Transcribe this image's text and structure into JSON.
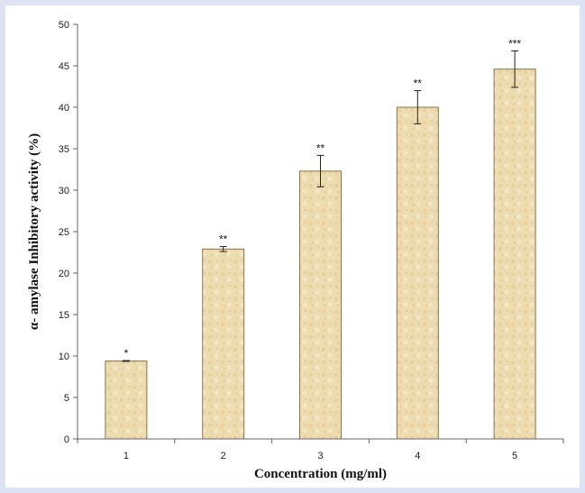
{
  "colors": {
    "background": "#dde3f4",
    "bar_fill": "#ecdcb0",
    "bar_edge": "#8a7450",
    "axis": "#666666"
  },
  "chart_data": {
    "type": "bar",
    "title": "",
    "xlabel": "Concentration (mg/ml)",
    "ylabel": "α- amylase Inhibitory activity (%)",
    "categories": [
      "1",
      "2",
      "3",
      "4",
      "5"
    ],
    "values": [
      9.4,
      22.9,
      32.3,
      40.0,
      44.6
    ],
    "error": [
      0.05,
      0.3,
      1.9,
      2.0,
      2.2
    ],
    "significance": [
      "*",
      "**",
      "**",
      "**",
      "***"
    ],
    "ylim": [
      0,
      50
    ],
    "yticks": [
      0,
      5,
      10,
      15,
      20,
      25,
      30,
      35,
      40,
      45,
      50
    ],
    "grid": false,
    "legend": "none"
  }
}
